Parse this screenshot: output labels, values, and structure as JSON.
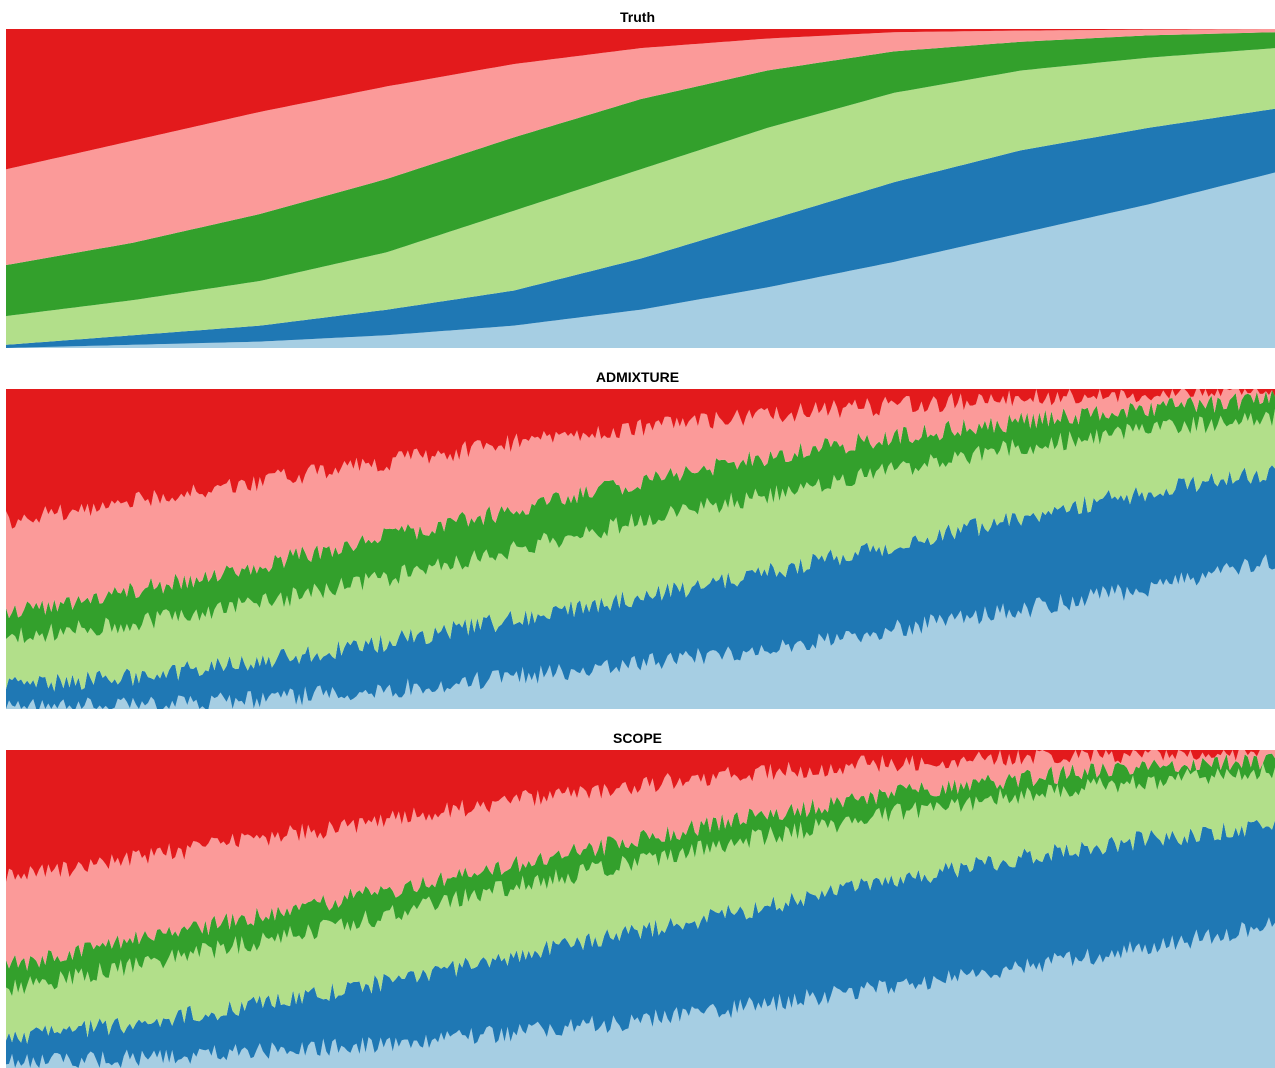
{
  "chart_data": [
    {
      "type": "area",
      "title": "Truth",
      "x_range": [
        0,
        1
      ],
      "ylim": [
        0,
        1
      ],
      "grid": false,
      "legend": "none",
      "colors": [
        "#a6cee3",
        "#1f78b4",
        "#b2df8a",
        "#33a02c",
        "#fb9a99",
        "#e31a1c"
      ],
      "x": [
        0,
        0.1,
        0.2,
        0.3,
        0.4,
        0.5,
        0.6,
        0.7,
        0.8,
        0.9,
        1.0
      ],
      "cumulative_boundaries": [
        [
          0.0,
          0.01,
          0.02,
          0.04,
          0.07,
          0.12,
          0.19,
          0.27,
          0.36,
          0.45,
          0.55
        ],
        [
          0.01,
          0.04,
          0.07,
          0.12,
          0.18,
          0.28,
          0.4,
          0.52,
          0.62,
          0.69,
          0.75
        ],
        [
          0.1,
          0.15,
          0.21,
          0.3,
          0.43,
          0.56,
          0.69,
          0.8,
          0.87,
          0.91,
          0.94
        ],
        [
          0.26,
          0.33,
          0.42,
          0.53,
          0.66,
          0.78,
          0.87,
          0.93,
          0.96,
          0.98,
          0.99
        ],
        [
          0.56,
          0.65,
          0.74,
          0.82,
          0.89,
          0.94,
          0.97,
          0.99,
          0.995,
          0.998,
          1.0
        ]
      ]
    },
    {
      "type": "area",
      "title": "ADMIXTURE",
      "x_range": [
        0,
        1
      ],
      "ylim": [
        0,
        1
      ],
      "grid": false,
      "legend": "none",
      "colors": [
        "#a6cee3",
        "#1f78b4",
        "#b2df8a",
        "#33a02c",
        "#fb9a99",
        "#e31a1c"
      ],
      "x": [
        0,
        0.1,
        0.2,
        0.3,
        0.4,
        0.5,
        0.6,
        0.7,
        0.8,
        0.9,
        1.0
      ],
      "cumulative_boundaries": [
        [
          0.0,
          0.01,
          0.03,
          0.06,
          0.1,
          0.14,
          0.19,
          0.25,
          0.31,
          0.38,
          0.46
        ],
        [
          0.07,
          0.1,
          0.15,
          0.21,
          0.28,
          0.35,
          0.43,
          0.51,
          0.6,
          0.68,
          0.74
        ],
        [
          0.22,
          0.27,
          0.33,
          0.41,
          0.5,
          0.59,
          0.67,
          0.75,
          0.82,
          0.87,
          0.91
        ],
        [
          0.3,
          0.37,
          0.45,
          0.54,
          0.62,
          0.71,
          0.79,
          0.85,
          0.9,
          0.94,
          0.97
        ],
        [
          0.59,
          0.65,
          0.71,
          0.77,
          0.83,
          0.88,
          0.92,
          0.95,
          0.97,
          0.99,
          0.995
        ]
      ]
    },
    {
      "type": "area",
      "title": "SCOPE",
      "x_range": [
        0,
        1
      ],
      "ylim": [
        0,
        1
      ],
      "grid": false,
      "legend": "none",
      "colors": [
        "#a6cee3",
        "#1f78b4",
        "#b2df8a",
        "#33a02c",
        "#fb9a99",
        "#e31a1c"
      ],
      "x": [
        0,
        0.1,
        0.2,
        0.3,
        0.4,
        0.5,
        0.6,
        0.7,
        0.8,
        0.9,
        1.0
      ],
      "cumulative_boundaries": [
        [
          0.02,
          0.03,
          0.05,
          0.08,
          0.11,
          0.15,
          0.2,
          0.26,
          0.32,
          0.38,
          0.45
        ],
        [
          0.09,
          0.14,
          0.2,
          0.27,
          0.35,
          0.43,
          0.51,
          0.59,
          0.66,
          0.72,
          0.76
        ],
        [
          0.25,
          0.32,
          0.4,
          0.48,
          0.57,
          0.65,
          0.73,
          0.8,
          0.86,
          0.9,
          0.94
        ],
        [
          0.32,
          0.4,
          0.48,
          0.56,
          0.64,
          0.72,
          0.8,
          0.86,
          0.91,
          0.95,
          0.97
        ],
        [
          0.6,
          0.66,
          0.72,
          0.78,
          0.84,
          0.89,
          0.93,
          0.96,
          0.98,
          0.99,
          0.995
        ]
      ]
    }
  ]
}
